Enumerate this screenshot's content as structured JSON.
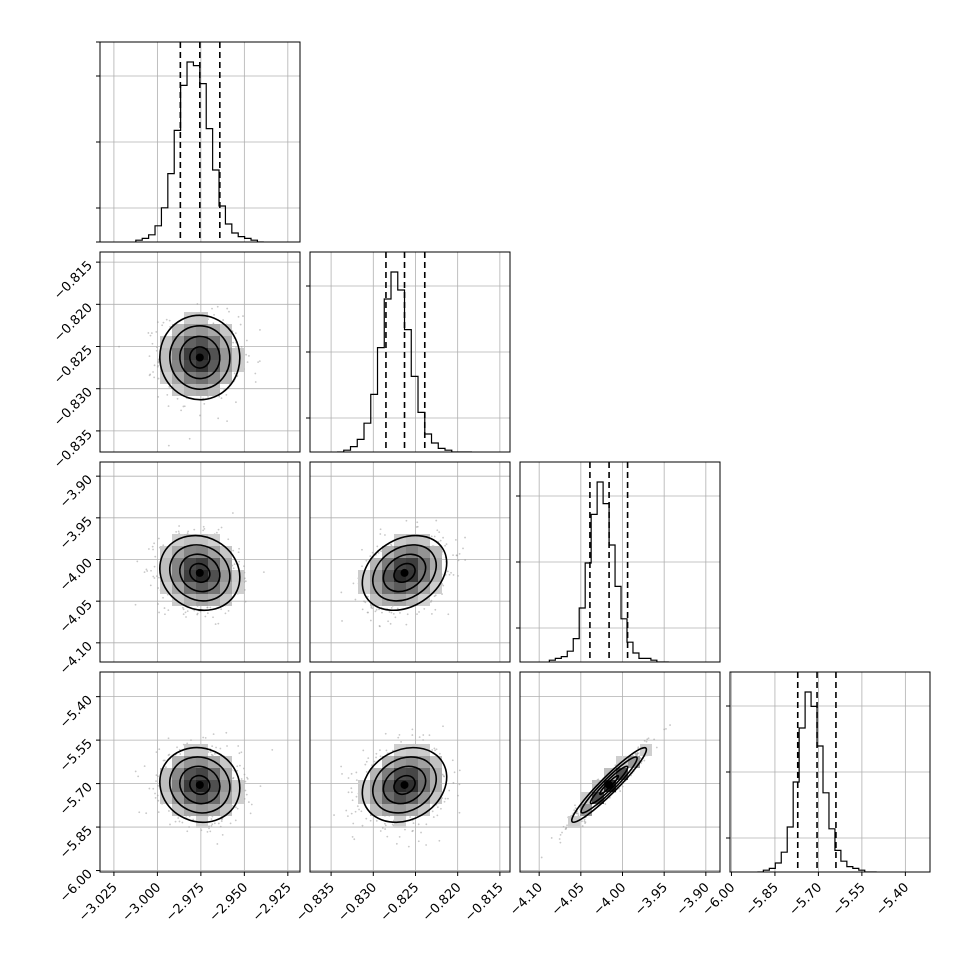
{
  "chart_data": {
    "type": "corner",
    "grid": true,
    "dims": [
      {
        "ticks": [
          -3.025,
          -3.0,
          -2.975,
          -2.95,
          -2.925
        ],
        "tick_labels": [
          "−3.025",
          "−3.000",
          "−2.975",
          "−2.950",
          "−2.925"
        ],
        "range": [
          -3.033,
          -2.918
        ]
      },
      {
        "ticks": [
          -0.835,
          -0.83,
          -0.825,
          -0.82,
          -0.815
        ],
        "tick_labels": [
          "−0.835",
          "−0.830",
          "−0.825",
          "−0.820",
          "−0.815"
        ],
        "range": [
          -0.8375,
          -0.8138
        ]
      },
      {
        "ticks": [
          -4.1,
          -4.05,
          -4.0,
          -3.95,
          -3.9
        ],
        "tick_labels": [
          "−4.10",
          "−4.05",
          "−4.00",
          "−3.95",
          "−3.90"
        ],
        "range": [
          -4.123,
          -3.883
        ]
      },
      {
        "ticks": [
          -6.0,
          -5.85,
          -5.7,
          -5.55,
          -5.4
        ],
        "tick_labels": [
          "−6.00",
          "−5.85",
          "−5.70",
          "−5.55",
          "−5.40"
        ],
        "range": [
          -6.005,
          -5.315
        ]
      }
    ],
    "medians": [
      -2.9756,
      -0.8263,
      -4.0161,
      -5.7047
    ],
    "sigmas": [
      0.0115,
      0.0025,
      0.0224,
      0.0643
    ],
    "quantile_lines": [
      [
        -2.9868,
        -2.9756,
        -2.9641
      ],
      [
        -0.8285,
        -0.8263,
        -0.8239
      ],
      [
        -4.0391,
        -4.0161,
        -3.9939
      ],
      [
        -5.7713,
        -5.7047,
        -5.6395
      ]
    ],
    "correlations": [
      [
        1.0,
        -0.01,
        -0.12,
        -0.08
      ],
      [
        -0.01,
        1.0,
        0.27,
        0.21
      ],
      [
        -0.12,
        0.27,
        1.0,
        0.95
      ],
      [
        -0.08,
        0.21,
        0.95,
        1.0
      ]
    ],
    "contour_levels_sigma": [
      0.5,
      1.0,
      1.5,
      2.0
    ],
    "histogram_bins": 20,
    "marginal_heights": [
      [
        0.01,
        0.02,
        0.04,
        0.09,
        0.19,
        0.38,
        0.62,
        0.87,
        1.0,
        0.98,
        0.88,
        0.63,
        0.4,
        0.2,
        0.1,
        0.05,
        0.03,
        0.02,
        0.01,
        0.0
      ],
      [
        0.0,
        0.01,
        0.03,
        0.07,
        0.16,
        0.32,
        0.58,
        0.85,
        1.0,
        0.9,
        0.68,
        0.42,
        0.22,
        0.1,
        0.05,
        0.02,
        0.01,
        0.0,
        0.0,
        0.0
      ],
      [
        0.01,
        0.02,
        0.03,
        0.06,
        0.13,
        0.3,
        0.55,
        0.82,
        1.0,
        0.88,
        0.65,
        0.42,
        0.24,
        0.11,
        0.05,
        0.02,
        0.02,
        0.01,
        0.0,
        0.0
      ],
      [
        0.0,
        0.01,
        0.02,
        0.05,
        0.11,
        0.25,
        0.5,
        0.8,
        1.0,
        0.92,
        0.7,
        0.44,
        0.24,
        0.12,
        0.06,
        0.03,
        0.02,
        0.01,
        0.0,
        0.0
      ]
    ]
  }
}
